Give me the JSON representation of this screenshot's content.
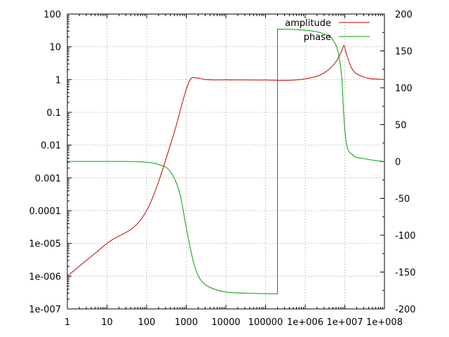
{
  "chart_data": {
    "type": "line",
    "x_scale": "log",
    "y_scale": "log",
    "y2_scale": "linear",
    "grid": true,
    "legend_position": "top-right",
    "xlim": [
      1,
      100000000
    ],
    "ylim": [
      1e-07,
      100
    ],
    "y2lim": [
      -200,
      200
    ],
    "x_ticks": [
      {
        "value": 1,
        "label": "1"
      },
      {
        "value": 10,
        "label": "10"
      },
      {
        "value": 100,
        "label": "100"
      },
      {
        "value": 1000,
        "label": "1000"
      },
      {
        "value": 10000,
        "label": "10000"
      },
      {
        "value": 100000,
        "label": "100000"
      },
      {
        "value": 1000000,
        "label": "1e+006"
      },
      {
        "value": 10000000,
        "label": "1e+007"
      },
      {
        "value": 100000000,
        "label": "1e+008"
      }
    ],
    "y_ticks": [
      {
        "value": 1e-07,
        "label": "1e-007"
      },
      {
        "value": 1e-06,
        "label": "1e-006"
      },
      {
        "value": 1e-05,
        "label": "1e-005"
      },
      {
        "value": 0.0001,
        "label": "0.0001"
      },
      {
        "value": 0.001,
        "label": "0.001"
      },
      {
        "value": 0.01,
        "label": "0.01"
      },
      {
        "value": 0.1,
        "label": "0.1"
      },
      {
        "value": 1,
        "label": "1"
      },
      {
        "value": 10,
        "label": "10"
      },
      {
        "value": 100,
        "label": "100"
      }
    ],
    "y2_ticks": [
      {
        "value": -200,
        "label": "-200"
      },
      {
        "value": -150,
        "label": "-150"
      },
      {
        "value": -100,
        "label": "-100"
      },
      {
        "value": -50,
        "label": "-50"
      },
      {
        "value": 0,
        "label": "0"
      },
      {
        "value": 50,
        "label": "50"
      },
      {
        "value": 100,
        "label": "100"
      },
      {
        "value": 150,
        "label": "150"
      },
      {
        "value": 200,
        "label": "200"
      }
    ],
    "series": [
      {
        "name": "amplitude",
        "axis": "y",
        "color": "#c00000",
        "points": [
          [
            1,
            1e-06
          ],
          [
            10,
            1e-05
          ],
          [
            100,
            0.0001
          ],
          [
            500,
            0.025
          ],
          [
            1000,
            0.5
          ],
          [
            1300,
            1.05
          ],
          [
            1800,
            1.12
          ],
          [
            3000,
            1.0
          ],
          [
            10000,
            0.98
          ],
          [
            100000,
            0.97
          ],
          [
            1000000,
            1.05
          ],
          [
            3000000,
            1.6
          ],
          [
            6000000,
            3.5
          ],
          [
            8500000,
            8.0
          ],
          [
            9500000,
            11.0
          ],
          [
            11000000,
            6.0
          ],
          [
            15000000,
            2.2
          ],
          [
            30000000,
            1.2
          ],
          [
            100000000,
            1.0
          ]
        ]
      },
      {
        "name": "phase",
        "axis": "y2",
        "color": "#00a000",
        "points": [
          [
            1,
            0
          ],
          [
            30,
            0
          ],
          [
            100,
            -1
          ],
          [
            200,
            -4
          ],
          [
            400,
            -14
          ],
          [
            700,
            -45
          ],
          [
            1000,
            -90
          ],
          [
            1500,
            -135
          ],
          [
            2000,
            -155
          ],
          [
            3000,
            -167
          ],
          [
            5000,
            -173
          ],
          [
            10000,
            -177
          ],
          [
            50000,
            -179
          ],
          [
            200000,
            -179.5
          ],
          [
            200000,
            179.5
          ],
          [
            1000000,
            178
          ],
          [
            3000000,
            173
          ],
          [
            5000000,
            165
          ],
          [
            7000000,
            145
          ],
          [
            8500000,
            110
          ],
          [
            9500000,
            60
          ],
          [
            11000000,
            25
          ],
          [
            15000000,
            10
          ],
          [
            30000000,
            4
          ],
          [
            100000000,
            0
          ]
        ]
      }
    ]
  }
}
